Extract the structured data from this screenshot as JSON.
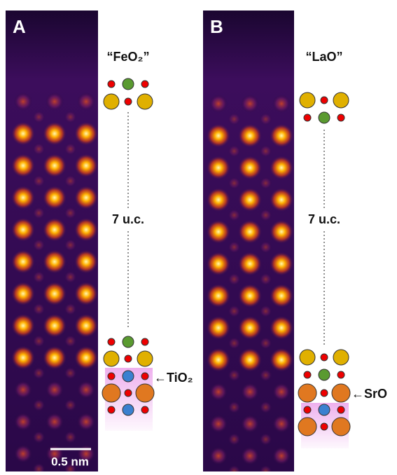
{
  "panels": [
    {
      "label": "A",
      "layer_top": "“FeO₂”",
      "spacing": "7 u.c.",
      "interface": "←TiO₂",
      "scale_bar": "0.5 nm"
    },
    {
      "label": "B",
      "layer_top": "“LaO”",
      "spacing": "7 u.c.",
      "interface": "←SrO"
    }
  ]
}
